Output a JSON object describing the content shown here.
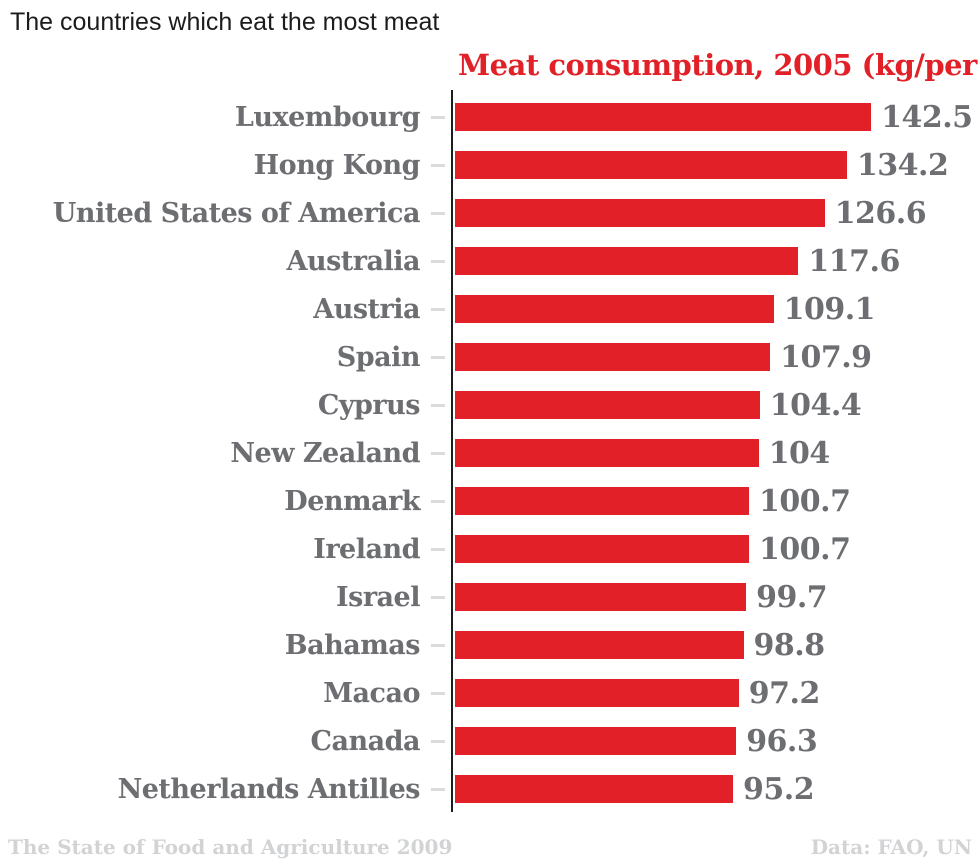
{
  "page_title": "The countries which eat the most meat",
  "chart_data": {
    "type": "bar",
    "orientation": "horizontal",
    "title": "Meat consumption, 2005 (kg/per",
    "categories": [
      "Luxembourg",
      "Hong Kong",
      "United States of America",
      "Australia",
      "Austria",
      "Spain",
      "Cyprus",
      "New Zealand",
      "Denmark",
      "Ireland",
      "Israel",
      "Bahamas",
      "Macao",
      "Canada",
      "Netherlands Antilles"
    ],
    "values": [
      142.5,
      134.2,
      126.6,
      117.6,
      109.1,
      107.9,
      104.4,
      104,
      100.7,
      100.7,
      99.7,
      98.8,
      97.2,
      96.3,
      95.2
    ],
    "xlabel": "",
    "ylabel": "",
    "xlim": [
      0,
      180
    ],
    "grid": false,
    "legend": "none",
    "value_labels": "end-of-bar"
  },
  "footer": {
    "left": "The State of Food and Agriculture 2009",
    "right": "Data: FAO, UN"
  },
  "colors": {
    "bar": "#e12127",
    "chart_title": "#e12127",
    "category_label": "#6d6e71",
    "value_label": "#6d6e71",
    "axis": "#1d1d1d",
    "tick": "#dadbdc",
    "footer": "#d2d3d5",
    "page_title": "#1c1c1c"
  }
}
